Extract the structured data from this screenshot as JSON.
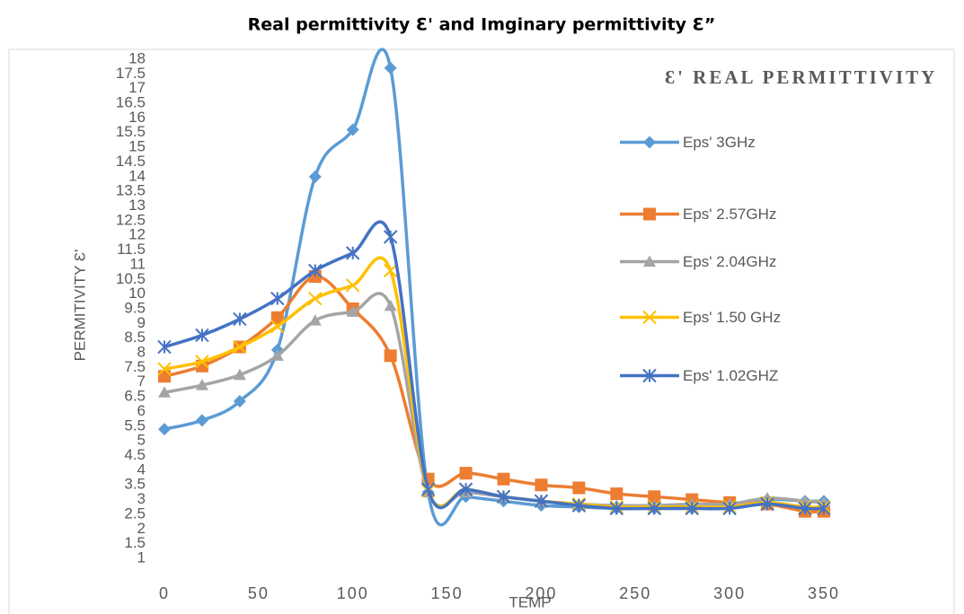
{
  "chart_data": {
    "type": "line",
    "title": "Real permittivity Ɛ' and Imginary permittivity Ɛ”",
    "annotation": "Ɛ' REAL PERMITTIVITY",
    "x_label": "TEMP",
    "y_label": "PERMITIVITY Ɛ'",
    "x": [
      0,
      20,
      40,
      60,
      80,
      100,
      120,
      140,
      160,
      180,
      200,
      220,
      240,
      260,
      280,
      300,
      320,
      340,
      350
    ],
    "series": [
      {
        "name": "Eps'  3GHz",
        "color": "#5b9bd5",
        "marker": "diamond",
        "values": [
          5.4,
          5.7,
          6.35,
          8.1,
          14.0,
          15.6,
          17.7,
          3.25,
          3.1,
          2.95,
          2.8,
          2.75,
          2.7,
          2.7,
          2.7,
          2.75,
          3.0,
          2.95,
          2.95
        ]
      },
      {
        "name": "Eps' 2.57GHz",
        "color": "#ed7d31",
        "marker": "square",
        "values": [
          7.2,
          7.55,
          8.2,
          9.2,
          10.6,
          9.5,
          7.9,
          3.7,
          3.9,
          3.7,
          3.5,
          3.4,
          3.2,
          3.1,
          3.0,
          2.9,
          2.85,
          2.6,
          2.6
        ]
      },
      {
        "name": "Eps' 2.04GHz",
        "color": "#a5a5a5",
        "marker": "triangle",
        "values": [
          6.65,
          6.9,
          7.25,
          7.9,
          9.1,
          9.4,
          9.6,
          3.25,
          3.25,
          3.1,
          2.95,
          2.85,
          2.8,
          2.8,
          2.85,
          2.85,
          3.05,
          2.95,
          2.9
        ]
      },
      {
        "name": "Eps' 1.50 GHz",
        "color": "#ffc000",
        "marker": "x",
        "values": [
          7.45,
          7.7,
          8.2,
          8.9,
          9.85,
          10.3,
          10.8,
          3.3,
          3.35,
          3.1,
          2.95,
          2.85,
          2.75,
          2.75,
          2.75,
          2.75,
          2.9,
          2.75,
          2.75
        ]
      },
      {
        "name": "Eps' 1.02GHZ",
        "color": "#4472c4",
        "marker": "star",
        "values": [
          8.2,
          8.6,
          9.15,
          9.85,
          10.8,
          11.4,
          11.95,
          3.35,
          3.35,
          3.1,
          2.95,
          2.8,
          2.7,
          2.7,
          2.7,
          2.7,
          2.85,
          2.7,
          2.7
        ]
      }
    ],
    "xlim": [
      0,
      350
    ],
    "xticks": [
      0,
      50,
      100,
      150,
      200,
      250,
      300,
      350
    ],
    "ylim": [
      1,
      18
    ],
    "yticks": [
      1,
      1.5,
      2,
      2.5,
      3,
      3.5,
      4,
      4.5,
      5,
      5.5,
      6,
      6.5,
      7,
      7.5,
      8,
      8.5,
      9,
      9.5,
      10,
      10.5,
      11,
      11.5,
      12,
      12.5,
      13,
      13.5,
      14,
      14.5,
      15,
      15.5,
      16,
      16.5,
      17,
      17.5,
      18
    ],
    "grid": false,
    "legend": "right"
  }
}
